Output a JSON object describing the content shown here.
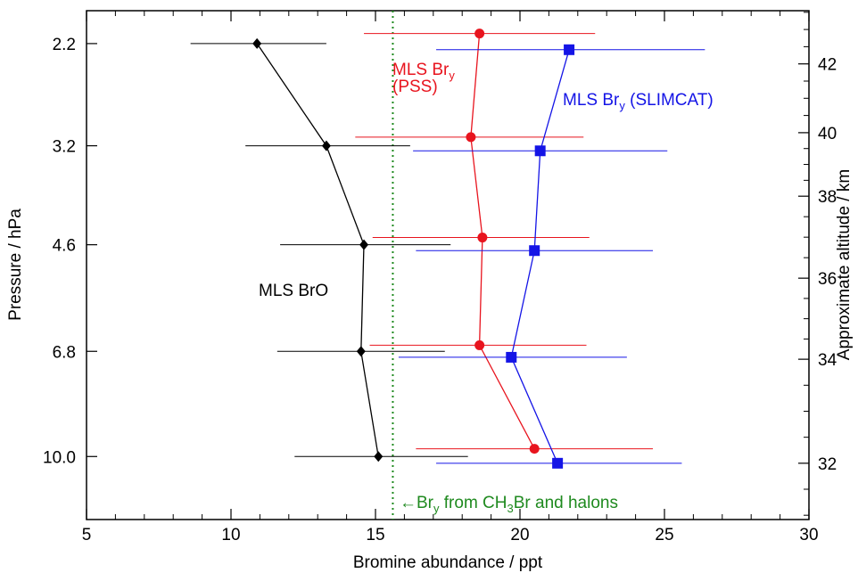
{
  "chart_data": {
    "type": "scatter",
    "title": "",
    "xlabel": "Bromine abundance / ppt",
    "ylabel": "Pressure / hPa",
    "ylabel_right": "Approximate altitude / km",
    "xlim": [
      5,
      30
    ],
    "xticks": [
      5,
      10,
      15,
      20,
      25,
      30
    ],
    "y_scale": "log",
    "ylim": [
      1.95,
      12.6
    ],
    "yticks": [
      2.2,
      3.2,
      4.6,
      6.8,
      10.0
    ],
    "ytick_labels": [
      "2.2",
      "3.2",
      "4.6",
      "6.8",
      "10.0"
    ],
    "y_right_ticks": [
      32,
      34,
      36,
      38,
      40,
      42
    ],
    "y_right_pressure_at_ticks": [
      10.25,
      7.0,
      5.2,
      3.85,
      3.05,
      2.37
    ],
    "grid": false,
    "legend": "inline labels",
    "series": [
      {
        "name": "MLS BrO",
        "color": "#000000",
        "marker": "diamond",
        "points": [
          {
            "pressure": 2.2,
            "value": 10.9,
            "xerr_low": 8.6,
            "xerr_high": 13.3
          },
          {
            "pressure": 3.2,
            "value": 13.3,
            "xerr_low": 10.5,
            "xerr_high": 16.2
          },
          {
            "pressure": 4.6,
            "value": 14.6,
            "xerr_low": 11.7,
            "xerr_high": 17.6
          },
          {
            "pressure": 6.8,
            "value": 14.5,
            "xerr_low": 11.6,
            "xerr_high": 17.4
          },
          {
            "pressure": 10.0,
            "value": 15.1,
            "xerr_low": 12.2,
            "xerr_high": 18.2
          }
        ]
      },
      {
        "name": "MLS Br",
        "name_subscript": "y",
        "name_line2": "(PSS)",
        "color": "#e8141e",
        "marker": "circle",
        "points": [
          {
            "pressure": 2.12,
            "value": 18.6,
            "xerr_low": 14.6,
            "xerr_high": 22.6
          },
          {
            "pressure": 3.1,
            "value": 18.3,
            "xerr_low": 14.3,
            "xerr_high": 22.2
          },
          {
            "pressure": 4.48,
            "value": 18.7,
            "xerr_low": 14.9,
            "xerr_high": 22.4
          },
          {
            "pressure": 6.65,
            "value": 18.6,
            "xerr_low": 14.8,
            "xerr_high": 22.3
          },
          {
            "pressure": 9.72,
            "value": 20.5,
            "xerr_low": 16.4,
            "xerr_high": 24.6
          }
        ]
      },
      {
        "name": "MLS Br",
        "name_subscript": "y",
        "name_suffix": " (SLIMCAT)",
        "color": "#1414e6",
        "marker": "square",
        "points": [
          {
            "pressure": 2.25,
            "value": 21.7,
            "xerr_low": 17.1,
            "xerr_high": 26.4
          },
          {
            "pressure": 3.26,
            "value": 20.7,
            "xerr_low": 16.3,
            "xerr_high": 25.1
          },
          {
            "pressure": 4.7,
            "value": 20.5,
            "xerr_low": 16.4,
            "xerr_high": 24.6
          },
          {
            "pressure": 6.95,
            "value": 19.7,
            "xerr_low": 15.8,
            "xerr_high": 23.7
          },
          {
            "pressure": 10.25,
            "value": 21.3,
            "xerr_low": 17.1,
            "xerr_high": 25.6
          }
        ]
      }
    ],
    "reference_line": {
      "x": 15.6,
      "color": "#1f8a1f",
      "style": "dotted",
      "label_arrow": "←",
      "label_parts": [
        "Br",
        "y",
        " from CH",
        "3",
        "Br and halons"
      ]
    }
  }
}
